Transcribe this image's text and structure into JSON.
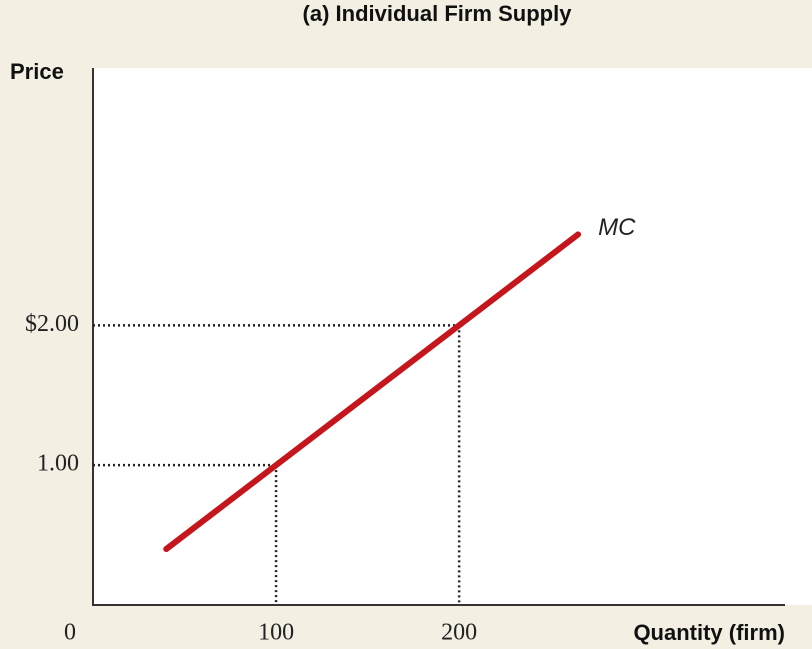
{
  "chart_data": {
    "type": "line",
    "title": "(a) Individual Firm Supply",
    "xlabel": "Quantity (firm)",
    "ylabel": "Price",
    "x": [
      40,
      265
    ],
    "series": [
      {
        "name": "MC",
        "color": "#c4161c",
        "values": [
          0.4,
          2.65
        ]
      }
    ],
    "reference_points": [
      {
        "x": 100,
        "y": 1
      },
      {
        "x": 200,
        "y": 2
      }
    ],
    "xlim": [
      0,
      378
    ],
    "ylim": [
      0,
      3.84
    ],
    "xticks": [
      0,
      100,
      200
    ],
    "yticks": [
      {
        "value": 1,
        "label": "1.00"
      },
      {
        "value": 2,
        "label": "$2.00"
      }
    ]
  }
}
